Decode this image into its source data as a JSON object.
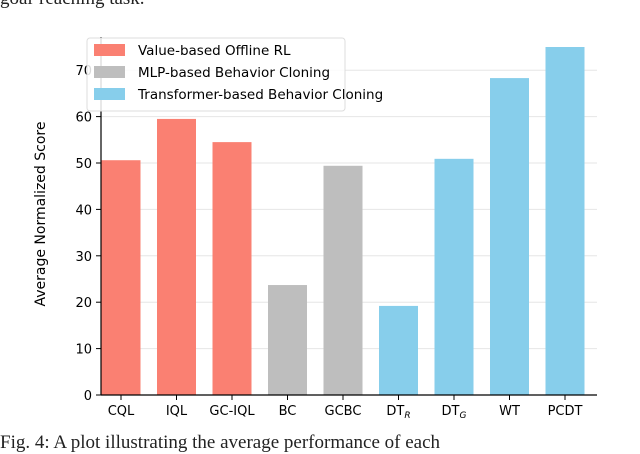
{
  "top_text": "goal-reaching task.",
  "caption": "Fig. 4: A plot illustrating the average performance of each",
  "chart_data": {
    "type": "bar",
    "title": "",
    "xlabel": "",
    "ylabel": "Average Normalized Score",
    "ylim": [
      0,
      78
    ],
    "yticks": [
      0,
      10,
      20,
      30,
      40,
      50,
      60,
      70
    ],
    "grid": "horizontal",
    "legend_position": "top-left",
    "categories": [
      "CQL",
      "IQL",
      "GC-IQL",
      "BC",
      "GCBC",
      "DT_R",
      "DT_G",
      "WT",
      "PCDT"
    ],
    "category_labels": [
      {
        "main": "CQL",
        "sub": ""
      },
      {
        "main": "IQL",
        "sub": ""
      },
      {
        "main": "GC-IQL",
        "sub": ""
      },
      {
        "main": "BC",
        "sub": ""
      },
      {
        "main": "GCBC",
        "sub": ""
      },
      {
        "main": "DT",
        "sub": "R"
      },
      {
        "main": "DT",
        "sub": "G"
      },
      {
        "main": "WT",
        "sub": ""
      },
      {
        "main": "PCDT",
        "sub": ""
      }
    ],
    "values": [
      50.6,
      59.5,
      54.5,
      23.7,
      49.4,
      19.2,
      50.9,
      68.3,
      75.0
    ],
    "groups": [
      0,
      0,
      0,
      1,
      1,
      2,
      2,
      2,
      2
    ],
    "legend": [
      {
        "name": "Value-based Offline RL",
        "color": "#fa8072"
      },
      {
        "name": "MLP-based Behavior Cloning",
        "color": "#bebebe"
      },
      {
        "name": "Transformer-based Behavior Cloning",
        "color": "#87ceeb"
      }
    ]
  }
}
